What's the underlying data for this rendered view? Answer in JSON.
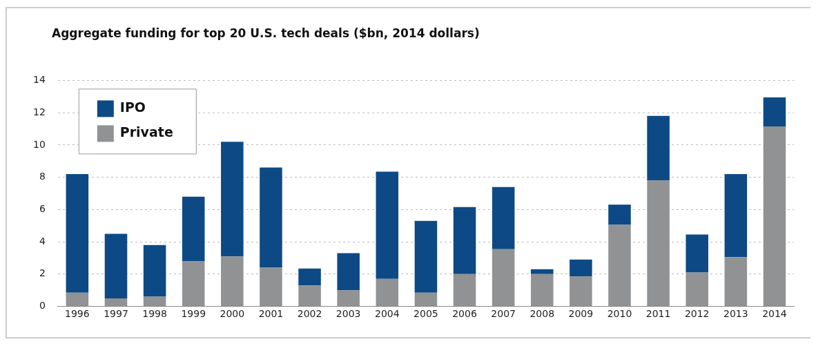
{
  "chart_data": {
    "type": "bar",
    "title": "Aggregate funding for top 20 U.S. tech deals ($bn, 2014 dollars)",
    "categories": [
      "1996",
      "1997",
      "1998",
      "1999",
      "2000",
      "2001",
      "2002",
      "2003",
      "2004",
      "2005",
      "2006",
      "2007",
      "2008",
      "2009",
      "2010",
      "2011",
      "2012",
      "2013",
      "2014"
    ],
    "stacked": true,
    "series": [
      {
        "name": "Private",
        "color": "#909294",
        "values": [
          0.85,
          0.5,
          0.6,
          2.8,
          3.1,
          2.4,
          1.3,
          1.0,
          1.7,
          0.85,
          2.0,
          3.55,
          2.0,
          1.85,
          5.05,
          7.8,
          2.1,
          3.05,
          11.15
        ]
      },
      {
        "name": "IPO",
        "color": "#0d4a85",
        "values": [
          7.35,
          4.0,
          3.2,
          4.0,
          7.1,
          6.2,
          1.05,
          2.3,
          6.65,
          4.45,
          4.15,
          3.85,
          0.3,
          1.05,
          1.25,
          4.0,
          2.35,
          5.15,
          1.8
        ]
      }
    ],
    "ylim": [
      0,
      14
    ],
    "yticks": [
      0,
      2,
      4,
      6,
      8,
      10,
      12,
      14
    ],
    "grid": "y",
    "legend": "top left"
  }
}
